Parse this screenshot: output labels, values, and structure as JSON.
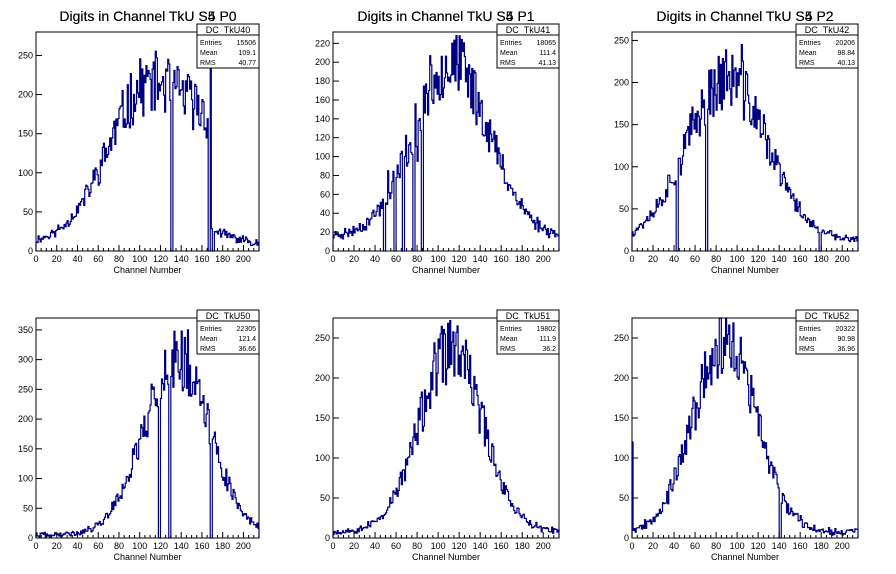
{
  "chart_data": [
    {
      "type": "histogram",
      "title": "Digits in Channel TkU S4 P0",
      "xlabel": "Channel Number",
      "ylabel": "",
      "xlim": [
        0,
        215
      ],
      "ylim": [
        0,
        280
      ],
      "xticks": [
        0,
        20,
        40,
        60,
        80,
        100,
        120,
        140,
        160,
        180,
        200
      ],
      "yticks": [
        0,
        50,
        100,
        150,
        200,
        250
      ],
      "stats": {
        "name": "DC_TkU40",
        "entries": "15506",
        "mean": "109.1",
        "rms": "40.77"
      },
      "shape": {
        "kind": "rise",
        "peak": 215,
        "center": 110,
        "width": 40,
        "cutoff": 168,
        "tail": 25,
        "floor": 10,
        "seed": 11
      },
      "spikes": [
        [
          130,
          0
        ],
        [
          135,
          210
        ],
        [
          166,
          0
        ],
        [
          168,
          262
        ],
        [
          170,
          0
        ]
      ],
      "series": [
        {
          "name": "",
          "color": "#000080"
        }
      ]
    },
    {
      "type": "histogram",
      "title": "Digits in Channel TkU S4 P1",
      "xlabel": "Channel Number",
      "ylabel": "",
      "xlim": [
        0,
        215
      ],
      "ylim": [
        0,
        232
      ],
      "xticks": [
        0,
        20,
        40,
        60,
        80,
        100,
        120,
        140,
        160,
        180,
        200
      ],
      "yticks": [
        0,
        20,
        40,
        60,
        80,
        100,
        120,
        140,
        160,
        180,
        200,
        220
      ],
      "stats": {
        "name": "DC_TkU41",
        "entries": "18065",
        "mean": "111.4",
        "rms": "41.13"
      },
      "shape": {
        "kind": "gauss",
        "peak": 200,
        "center": 112,
        "width": 36,
        "floor": 15,
        "seed": 23
      },
      "spikes": [
        [
          48,
          0
        ],
        [
          52,
          85
        ],
        [
          58,
          0
        ],
        [
          62,
          82
        ],
        [
          66,
          0
        ],
        [
          70,
          90
        ],
        [
          76,
          0
        ],
        [
          80,
          95
        ],
        [
          84,
          0
        ]
      ],
      "series": [
        {
          "name": "",
          "color": "#000080"
        }
      ]
    },
    {
      "type": "histogram",
      "title": "Digits in Channel TkU S4 P2",
      "xlabel": "Channel Number",
      "ylabel": "",
      "xlim": [
        0,
        215
      ],
      "ylim": [
        0,
        260
      ],
      "xticks": [
        0,
        20,
        40,
        60,
        80,
        100,
        120,
        140,
        160,
        180,
        200
      ],
      "yticks": [
        0,
        50,
        100,
        150,
        200,
        250
      ],
      "stats": {
        "name": "DC_TkU42",
        "entries": "20206",
        "mean": "98.84",
        "rms": "40.13"
      },
      "shape": {
        "kind": "gauss",
        "peak": 205,
        "center": 90,
        "width": 38,
        "floor": 12,
        "seed": 37
      },
      "spikes": [
        [
          42,
          0
        ],
        [
          70,
          0
        ],
        [
          104,
          245
        ],
        [
          178,
          0
        ]
      ],
      "series": [
        {
          "name": "",
          "color": "#000080"
        }
      ]
    },
    {
      "type": "histogram",
      "title": "Digits in Channel TkU S5 P0",
      "xlabel": "Channel Number",
      "ylabel": "",
      "xlim": [
        0,
        215
      ],
      "ylim": [
        0,
        370
      ],
      "xticks": [
        0,
        20,
        40,
        60,
        80,
        100,
        120,
        140,
        160,
        180,
        200
      ],
      "yticks": [
        0,
        50,
        100,
        150,
        200,
        250,
        300,
        350
      ],
      "stats": {
        "name": "DC_TkU50",
        "entries": "22305",
        "mean": "121.4",
        "rms": "36.66"
      },
      "shape": {
        "kind": "gauss",
        "peak": 300,
        "center": 135,
        "width": 32,
        "floor": 5,
        "seed": 41
      },
      "spikes": [
        [
          118,
          0
        ],
        [
          128,
          0
        ],
        [
          140,
          348
        ],
        [
          146,
          350
        ],
        [
          168,
          0
        ]
      ],
      "series": [
        {
          "name": "",
          "color": "#000080"
        }
      ]
    },
    {
      "type": "histogram",
      "title": "Digits in Channel TkU S5 P1",
      "xlabel": "Channel Number",
      "ylabel": "",
      "xlim": [
        0,
        215
      ],
      "ylim": [
        0,
        275
      ],
      "xticks": [
        0,
        20,
        40,
        60,
        80,
        100,
        120,
        140,
        160,
        180,
        200
      ],
      "yticks": [
        0,
        50,
        100,
        150,
        200,
        250
      ],
      "stats": {
        "name": "DC_TkU51",
        "entries": "19802",
        "mean": "111.9",
        "rms": "36.2"
      },
      "shape": {
        "kind": "gauss",
        "peak": 235,
        "center": 112,
        "width": 30,
        "floor": 8,
        "seed": 53
      },
      "spikes": [
        [
          118,
          265
        ]
      ],
      "series": [
        {
          "name": "",
          "color": "#000080"
        }
      ]
    },
    {
      "type": "histogram",
      "title": "Digits in Channel TkU S5 P2",
      "xlabel": "Channel Number",
      "ylabel": "",
      "xlim": [
        0,
        215
      ],
      "ylim": [
        0,
        275
      ],
      "xticks": [
        0,
        20,
        40,
        60,
        80,
        100,
        120,
        140,
        160,
        180,
        200
      ],
      "yticks": [
        0,
        50,
        100,
        150,
        200,
        250
      ],
      "stats": {
        "name": "DC_TkU52",
        "entries": "20322",
        "mean": "90.98",
        "rms": "36.96"
      },
      "shape": {
        "kind": "gauss",
        "peak": 245,
        "center": 88,
        "width": 30,
        "floor": 8,
        "seed": 67
      },
      "spikes": [
        [
          0,
          120
        ],
        [
          140,
          0
        ]
      ],
      "series": [
        {
          "name": "",
          "color": "#000080"
        }
      ]
    }
  ]
}
